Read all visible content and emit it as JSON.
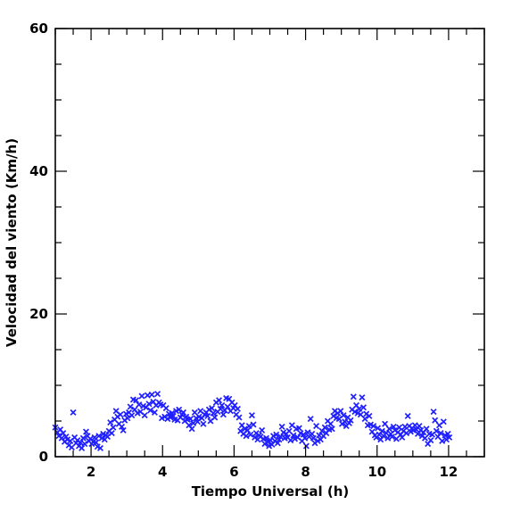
{
  "chart_data": {
    "type": "scatter",
    "title": "",
    "xlabel": "Tiempo Universal (h)",
    "ylabel": "Velocidad del viento (Km/h)",
    "xlim": [
      1,
      13
    ],
    "ylim": [
      0,
      60
    ],
    "xticks": [
      2,
      4,
      6,
      8,
      10,
      12
    ],
    "xtick_labels": [
      "2",
      "4",
      "6",
      "8",
      "10",
      "12"
    ],
    "yticks": [
      0,
      20,
      40,
      60
    ],
    "ytick_labels": [
      "0",
      "20",
      "40",
      "60"
    ],
    "marker": "x",
    "color": "#1f1fff",
    "grid": false,
    "series": [
      {
        "points": [
          [
            1.0,
            4.1
          ],
          [
            1.06,
            3.4
          ],
          [
            1.1,
            2.9
          ],
          [
            1.14,
            3.8
          ],
          [
            1.18,
            2.6
          ],
          [
            1.22,
            3.3
          ],
          [
            1.26,
            2.1
          ],
          [
            1.3,
            2.8
          ],
          [
            1.34,
            2.4
          ],
          [
            1.38,
            1.6
          ],
          [
            1.42,
            2.2
          ],
          [
            1.46,
            1.3
          ],
          [
            1.5,
            6.2
          ],
          [
            1.54,
            2.7
          ],
          [
            1.58,
            1.9
          ],
          [
            1.62,
            2.3
          ],
          [
            1.66,
            1.5
          ],
          [
            1.7,
            2.0
          ],
          [
            1.74,
            1.2
          ],
          [
            1.78,
            2.6
          ],
          [
            1.82,
            1.8
          ],
          [
            1.86,
            3.5
          ],
          [
            1.9,
            2.9
          ],
          [
            1.94,
            2.2
          ],
          [
            1.98,
            2.5
          ],
          [
            2.02,
            1.8
          ],
          [
            2.06,
            2.1
          ],
          [
            2.1,
            2.7
          ],
          [
            2.14,
            2.0
          ],
          [
            2.18,
            1.4
          ],
          [
            2.22,
            2.9
          ],
          [
            2.26,
            1.2
          ],
          [
            2.3,
            2.6
          ],
          [
            2.34,
            3.2
          ],
          [
            2.38,
            2.4
          ],
          [
            2.42,
            3.0
          ],
          [
            2.46,
            2.8
          ],
          [
            2.5,
            3.6
          ],
          [
            2.54,
            4.8
          ],
          [
            2.58,
            3.3
          ],
          [
            2.62,
            4.1
          ],
          [
            2.66,
            5.2
          ],
          [
            2.7,
            6.4
          ],
          [
            2.74,
            5.6
          ],
          [
            2.78,
            4.6
          ],
          [
            2.82,
            5.9
          ],
          [
            2.86,
            4.2
          ],
          [
            2.9,
            3.7
          ],
          [
            2.94,
            5.1
          ],
          [
            2.98,
            6.0
          ],
          [
            3.02,
            5.4
          ],
          [
            3.06,
            6.2
          ],
          [
            3.1,
            7.0
          ],
          [
            3.14,
            5.8
          ],
          [
            3.18,
            8.0
          ],
          [
            3.22,
            6.6
          ],
          [
            3.26,
            7.9
          ],
          [
            3.3,
            6.1
          ],
          [
            3.34,
            7.3
          ],
          [
            3.38,
            6.3
          ],
          [
            3.42,
            8.5
          ],
          [
            3.46,
            7.1
          ],
          [
            3.5,
            5.8
          ],
          [
            3.54,
            6.9
          ],
          [
            3.58,
            8.6
          ],
          [
            3.62,
            7.4
          ],
          [
            3.66,
            6.5
          ],
          [
            3.7,
            8.7
          ],
          [
            3.74,
            7.7
          ],
          [
            3.78,
            6.2
          ],
          [
            3.82,
            7.2
          ],
          [
            3.86,
            8.8
          ],
          [
            3.9,
            7.6
          ],
          [
            3.94,
            7.3
          ],
          [
            3.98,
            5.4
          ],
          [
            4.02,
            7.2
          ],
          [
            4.06,
            5.6
          ],
          [
            4.1,
            6.8
          ],
          [
            4.14,
            5.3
          ],
          [
            4.18,
            6.0
          ],
          [
            4.22,
            5.5
          ],
          [
            4.26,
            6.1
          ],
          [
            4.3,
            5.7
          ],
          [
            4.34,
            5.2
          ],
          [
            4.38,
            6.4
          ],
          [
            4.42,
            5.1
          ],
          [
            4.46,
            6.6
          ],
          [
            4.5,
            5.5
          ],
          [
            4.54,
            5.9
          ],
          [
            4.58,
            6.2
          ],
          [
            4.62,
            5.0
          ],
          [
            4.66,
            5.6
          ],
          [
            4.7,
            5.2
          ],
          [
            4.74,
            4.4
          ],
          [
            4.78,
            5.3
          ],
          [
            4.82,
            3.9
          ],
          [
            4.86,
            4.7
          ],
          [
            4.9,
            6.2
          ],
          [
            4.94,
            5.4
          ],
          [
            4.98,
            4.9
          ],
          [
            5.02,
            5.6
          ],
          [
            5.06,
            6.4
          ],
          [
            5.1,
            5.4
          ],
          [
            5.14,
            4.6
          ],
          [
            5.18,
            5.9
          ],
          [
            5.22,
            6.2
          ],
          [
            5.26,
            5.7
          ],
          [
            5.3,
            6.6
          ],
          [
            5.34,
            5.0
          ],
          [
            5.38,
            6.8
          ],
          [
            5.42,
            6.1
          ],
          [
            5.46,
            5.5
          ],
          [
            5.5,
            7.6
          ],
          [
            5.54,
            6.3
          ],
          [
            5.58,
            7.9
          ],
          [
            5.62,
            6.7
          ],
          [
            5.66,
            7.2
          ],
          [
            5.7,
            5.9
          ],
          [
            5.74,
            6.5
          ],
          [
            5.78,
            8.2
          ],
          [
            5.82,
            7.0
          ],
          [
            5.86,
            8.1
          ],
          [
            5.9,
            6.4
          ],
          [
            5.94,
            7.6
          ],
          [
            5.98,
            6.8
          ],
          [
            6.02,
            7.2
          ],
          [
            6.06,
            5.9
          ],
          [
            6.1,
            6.7
          ],
          [
            6.14,
            5.5
          ],
          [
            6.18,
            3.6
          ],
          [
            6.22,
            4.4
          ],
          [
            6.26,
            3.2
          ],
          [
            6.3,
            3.9
          ],
          [
            6.34,
            2.9
          ],
          [
            6.38,
            3.7
          ],
          [
            6.42,
            4.3
          ],
          [
            6.46,
            3.1
          ],
          [
            6.5,
            5.8
          ],
          [
            6.54,
            4.5
          ],
          [
            6.58,
            2.7
          ],
          [
            6.62,
            3.3
          ],
          [
            6.66,
            2.4
          ],
          [
            6.7,
            3.0
          ],
          [
            6.74,
            2.8
          ],
          [
            6.78,
            3.7
          ],
          [
            6.82,
            2.5
          ],
          [
            6.86,
            1.8
          ],
          [
            6.9,
            2.6
          ],
          [
            6.94,
            2.1
          ],
          [
            6.98,
            1.5
          ],
          [
            7.02,
            2.3
          ],
          [
            7.06,
            1.7
          ],
          [
            7.1,
            2.9
          ],
          [
            7.14,
            2.2
          ],
          [
            7.18,
            3.1
          ],
          [
            7.22,
            1.9
          ],
          [
            7.26,
            2.4
          ],
          [
            7.3,
            2.8
          ],
          [
            7.34,
            4.2
          ],
          [
            7.38,
            3.4
          ],
          [
            7.42,
            2.6
          ],
          [
            7.46,
            3.2
          ],
          [
            7.5,
            2.7
          ],
          [
            7.54,
            3.6
          ],
          [
            7.58,
            2.3
          ],
          [
            7.62,
            4.4
          ],
          [
            7.66,
            3.0
          ],
          [
            7.7,
            2.5
          ],
          [
            7.74,
            3.9
          ],
          [
            7.78,
            2.7
          ],
          [
            7.82,
            4.0
          ],
          [
            7.86,
            3.3
          ],
          [
            7.9,
            2.2
          ],
          [
            7.94,
            3.1
          ],
          [
            7.98,
            2.6
          ],
          [
            8.02,
            1.5
          ],
          [
            8.06,
            3.4
          ],
          [
            8.1,
            2.8
          ],
          [
            8.14,
            5.3
          ],
          [
            8.18,
            3.2
          ],
          [
            8.22,
            2.6
          ],
          [
            8.26,
            1.9
          ],
          [
            8.3,
            4.3
          ],
          [
            8.34,
            2.2
          ],
          [
            8.38,
            3.0
          ],
          [
            8.42,
            2.4
          ],
          [
            8.46,
            3.6
          ],
          [
            8.5,
            2.9
          ],
          [
            8.54,
            4.1
          ],
          [
            8.58,
            3.3
          ],
          [
            8.62,
            5.0
          ],
          [
            8.66,
            3.8
          ],
          [
            8.7,
            4.6
          ],
          [
            8.74,
            3.9
          ],
          [
            8.78,
            5.7
          ],
          [
            8.82,
            6.4
          ],
          [
            8.86,
            5.4
          ],
          [
            8.9,
            6.1
          ],
          [
            8.94,
            5.3
          ],
          [
            8.98,
            6.4
          ],
          [
            9.02,
            4.6
          ],
          [
            9.06,
            5.8
          ],
          [
            9.1,
            4.9
          ],
          [
            9.14,
            4.3
          ],
          [
            9.18,
            5.5
          ],
          [
            9.22,
            4.7
          ],
          [
            9.26,
            5.1
          ],
          [
            9.3,
            6.6
          ],
          [
            9.34,
            8.4
          ],
          [
            9.38,
            6.3
          ],
          [
            9.42,
            7.2
          ],
          [
            9.46,
            6.1
          ],
          [
            9.5,
            6.7
          ],
          [
            9.54,
            5.9
          ],
          [
            9.58,
            8.3
          ],
          [
            9.62,
            6.9
          ],
          [
            9.66,
            5.3
          ],
          [
            9.7,
            6.0
          ],
          [
            9.74,
            4.4
          ],
          [
            9.78,
            5.7
          ],
          [
            9.82,
            4.5
          ],
          [
            9.86,
            3.5
          ],
          [
            9.9,
            4.3
          ],
          [
            9.94,
            3.0
          ],
          [
            9.98,
            2.7
          ],
          [
            10.02,
            4.0
          ],
          [
            10.06,
            3.1
          ],
          [
            10.1,
            2.4
          ],
          [
            10.14,
            3.6
          ],
          [
            10.18,
            2.9
          ],
          [
            10.22,
            4.6
          ],
          [
            10.26,
            3.3
          ],
          [
            10.3,
            2.6
          ],
          [
            10.34,
            3.9
          ],
          [
            10.38,
            3.2
          ],
          [
            10.42,
            2.8
          ],
          [
            10.46,
            4.2
          ],
          [
            10.5,
            3.7
          ],
          [
            10.54,
            2.5
          ],
          [
            10.58,
            3.4
          ],
          [
            10.62,
            4.1
          ],
          [
            10.66,
            3.1
          ],
          [
            10.7,
            2.7
          ],
          [
            10.74,
            3.6
          ],
          [
            10.78,
            4.2
          ],
          [
            10.82,
            3.3
          ],
          [
            10.86,
            5.7
          ],
          [
            10.9,
            4.3
          ],
          [
            10.94,
            3.5
          ],
          [
            10.98,
            4.0
          ],
          [
            11.02,
            3.7
          ],
          [
            11.06,
            4.4
          ],
          [
            11.1,
            3.8
          ],
          [
            11.14,
            3.2
          ],
          [
            11.18,
            4.3
          ],
          [
            11.22,
            3.7
          ],
          [
            11.26,
            2.9
          ],
          [
            11.3,
            3.4
          ],
          [
            11.34,
            2.6
          ],
          [
            11.38,
            3.9
          ],
          [
            11.42,
            1.8
          ],
          [
            11.46,
            3.2
          ],
          [
            11.5,
            2.3
          ],
          [
            11.54,
            3.1
          ],
          [
            11.58,
            6.3
          ],
          [
            11.62,
            5.1
          ],
          [
            11.66,
            3.6
          ],
          [
            11.7,
            2.8
          ],
          [
            11.74,
            4.4
          ],
          [
            11.78,
            3.3
          ],
          [
            11.82,
            2.2
          ],
          [
            11.86,
            4.9
          ],
          [
            11.9,
            3.0
          ],
          [
            11.94,
            2.4
          ],
          [
            11.98,
            3.2
          ],
          [
            12.02,
            2.7
          ]
        ]
      }
    ]
  }
}
